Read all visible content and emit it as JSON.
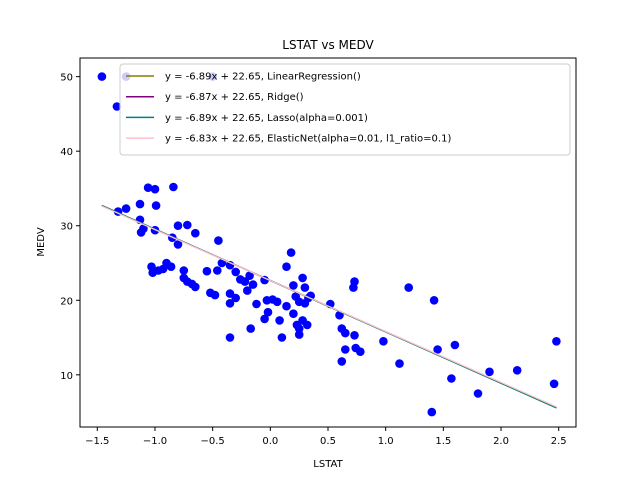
{
  "chart_data": {
    "type": "scatter",
    "title": "LSTAT vs MEDV",
    "xlabel": "LSTAT",
    "ylabel": "MEDV",
    "xlim": [
      -1.65,
      2.65
    ],
    "ylim": [
      3.0,
      52.5
    ],
    "x_ticks": [
      -1.5,
      -1.0,
      -0.5,
      0.0,
      0.5,
      1.0,
      1.5,
      2.0,
      2.5
    ],
    "x_tick_labels": [
      "−1.5",
      "−1.0",
      "−0.5",
      "0.0",
      "0.5",
      "1.0",
      "1.5",
      "2.0",
      "2.5"
    ],
    "y_ticks": [
      10,
      20,
      30,
      40,
      50
    ],
    "y_tick_labels": [
      "10",
      "20",
      "30",
      "40",
      "50"
    ],
    "grid": false,
    "legend_position": "top-right",
    "scatter_color": "#0000ff",
    "points": [
      [
        -1.46,
        50.0
      ],
      [
        -1.25,
        50.0
      ],
      [
        -1.33,
        46.0
      ],
      [
        -0.5,
        50.0
      ],
      [
        -1.32,
        31.9
      ],
      [
        -1.25,
        32.3
      ],
      [
        -1.13,
        32.9
      ],
      [
        -1.13,
        30.8
      ],
      [
        -1.12,
        29.1
      ],
      [
        -1.1,
        29.6
      ],
      [
        -1.06,
        35.1
      ],
      [
        -1.0,
        34.9
      ],
      [
        -0.99,
        32.7
      ],
      [
        -0.84,
        35.2
      ],
      [
        -1.0,
        29.4
      ],
      [
        -0.85,
        28.4
      ],
      [
        -0.8,
        30.0
      ],
      [
        -0.72,
        30.1
      ],
      [
        -0.8,
        27.5
      ],
      [
        -0.65,
        29.0
      ],
      [
        -0.45,
        28.0
      ],
      [
        -1.03,
        24.5
      ],
      [
        -1.02,
        23.7
      ],
      [
        -0.97,
        24.0
      ],
      [
        -0.93,
        24.2
      ],
      [
        -0.9,
        25.0
      ],
      [
        -0.86,
        24.5
      ],
      [
        -0.75,
        24.0
      ],
      [
        -0.75,
        23.0
      ],
      [
        -0.72,
        22.5
      ],
      [
        -0.68,
        22.2
      ],
      [
        -0.65,
        21.8
      ],
      [
        -0.55,
        23.9
      ],
      [
        -0.46,
        24.0
      ],
      [
        -0.42,
        25.0
      ],
      [
        -0.35,
        24.7
      ],
      [
        -0.3,
        23.8
      ],
      [
        -0.52,
        21.0
      ],
      [
        -0.48,
        20.7
      ],
      [
        -0.35,
        20.9
      ],
      [
        -0.35,
        19.6
      ],
      [
        -0.3,
        20.3
      ],
      [
        -0.26,
        22.8
      ],
      [
        -0.22,
        22.5
      ],
      [
        -0.2,
        21.3
      ],
      [
        -0.18,
        23.3
      ],
      [
        -0.15,
        22.1
      ],
      [
        -0.05,
        22.7
      ],
      [
        -0.03,
        20.0
      ],
      [
        -0.12,
        19.5
      ],
      [
        -0.35,
        15.0
      ],
      [
        -0.17,
        16.2
      ],
      [
        -0.05,
        17.5
      ],
      [
        -0.02,
        18.4
      ],
      [
        0.02,
        20.1
      ],
      [
        0.06,
        19.8
      ],
      [
        0.08,
        17.3
      ],
      [
        0.1,
        15.0
      ],
      [
        0.14,
        24.5
      ],
      [
        0.18,
        26.4
      ],
      [
        0.2,
        22.0
      ],
      [
        0.22,
        20.5
      ],
      [
        0.25,
        19.8
      ],
      [
        0.28,
        23.0
      ],
      [
        0.3,
        21.7
      ],
      [
        0.33,
        20.3
      ],
      [
        0.35,
        20.6
      ],
      [
        0.14,
        19.2
      ],
      [
        0.2,
        18.2
      ],
      [
        0.23,
        16.7
      ],
      [
        0.25,
        16.2
      ],
      [
        0.3,
        19.6
      ],
      [
        0.32,
        16.7
      ],
      [
        0.28,
        17.3
      ],
      [
        0.25,
        15.4
      ],
      [
        0.52,
        19.5
      ],
      [
        0.6,
        18.0
      ],
      [
        0.62,
        16.2
      ],
      [
        0.65,
        15.6
      ],
      [
        0.72,
        21.7
      ],
      [
        0.73,
        22.5
      ],
      [
        0.65,
        13.4
      ],
      [
        0.62,
        11.8
      ],
      [
        0.73,
        15.3
      ],
      [
        0.74,
        13.6
      ],
      [
        0.78,
        13.1
      ],
      [
        0.98,
        14.5
      ],
      [
        1.12,
        11.5
      ],
      [
        1.2,
        21.7
      ],
      [
        1.42,
        20.0
      ],
      [
        1.45,
        13.4
      ],
      [
        1.4,
        5.0
      ],
      [
        1.57,
        9.5
      ],
      [
        1.6,
        14.0
      ],
      [
        1.8,
        7.5
      ],
      [
        1.9,
        10.4
      ],
      [
        2.14,
        10.6
      ],
      [
        2.48,
        14.5
      ],
      [
        2.46,
        8.8
      ]
    ],
    "series": [
      {
        "name": "y = -6.89x + 22.65, LinearRegression()",
        "slope": -6.89,
        "intercept": 22.65,
        "color": "#808000"
      },
      {
        "name": "y = -6.87x + 22.65, Ridge()",
        "slope": -6.87,
        "intercept": 22.65,
        "color": "#800080"
      },
      {
        "name": "y = -6.89x + 22.65, Lasso(alpha=0.001)",
        "slope": -6.89,
        "intercept": 22.65,
        "color": "#008080"
      },
      {
        "name": "y = -6.83x + 22.65, ElasticNet(alpha=0.01, l1_ratio=0.1)",
        "slope": -6.83,
        "intercept": 22.65,
        "color": "#ffc0cb"
      }
    ],
    "line_x_range": [
      -1.46,
      2.48
    ]
  }
}
